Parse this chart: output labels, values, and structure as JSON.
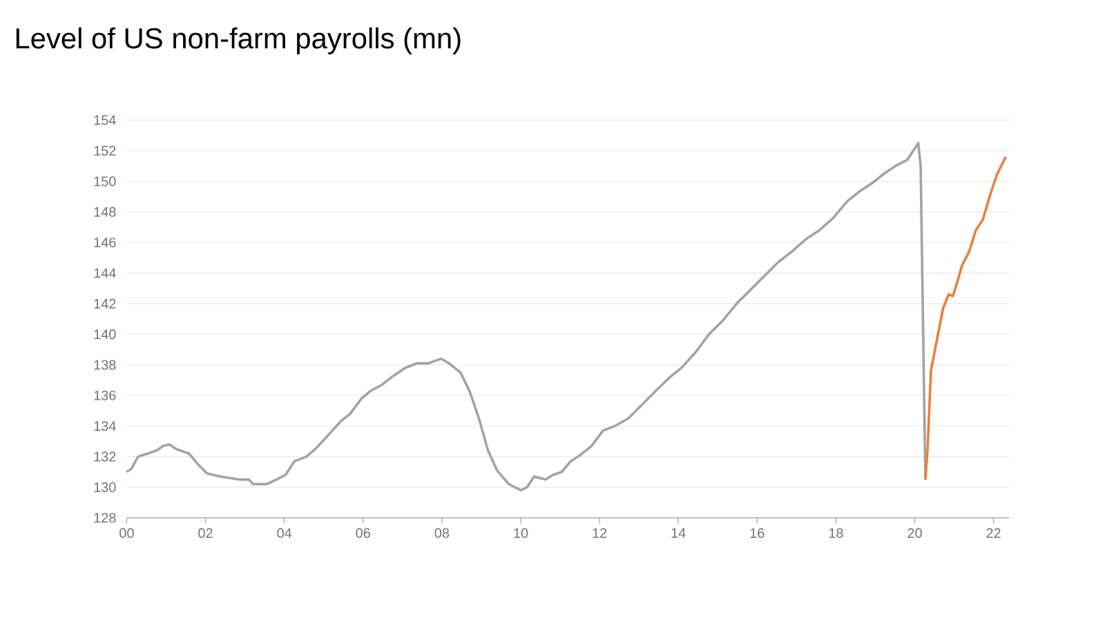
{
  "chart_data": {
    "type": "line",
    "title": "Level of US non-farm payrolls (mn)",
    "xlim": [
      2000,
      2022.4
    ],
    "ylim": [
      128,
      154
    ],
    "xticks": [
      {
        "value": 2000,
        "label": "00"
      },
      {
        "value": 2002,
        "label": "02"
      },
      {
        "value": 2004,
        "label": "04"
      },
      {
        "value": 2006,
        "label": "06"
      },
      {
        "value": 2008,
        "label": "08"
      },
      {
        "value": 2010,
        "label": "10"
      },
      {
        "value": 2012,
        "label": "12"
      },
      {
        "value": 2014,
        "label": "14"
      },
      {
        "value": 2016,
        "label": "16"
      },
      {
        "value": 2018,
        "label": "18"
      },
      {
        "value": 2020,
        "label": "20"
      },
      {
        "value": 2022,
        "label": "22"
      }
    ],
    "yticks": [
      128,
      130,
      132,
      134,
      136,
      138,
      140,
      142,
      144,
      146,
      148,
      150,
      152,
      154
    ],
    "grid": "y",
    "marker": "none",
    "line_style": "solid",
    "series": [
      {
        "color": "#a3a3a3",
        "x": [
          2000.0,
          2000.12,
          2000.29,
          2000.53,
          2000.76,
          2000.93,
          2001.09,
          2001.25,
          2001.58,
          2001.81,
          2002.04,
          2002.39,
          2002.86,
          2003.1,
          2003.21,
          2003.56,
          2003.8,
          2004.03,
          2004.26,
          2004.56,
          2004.79,
          2005.08,
          2005.43,
          2005.67,
          2005.96,
          2006.19,
          2006.48,
          2006.78,
          2007.07,
          2007.36,
          2007.65,
          2007.98,
          2008.18,
          2008.47,
          2008.7,
          2008.94,
          2009.17,
          2009.4,
          2009.7,
          2010.01,
          2010.16,
          2010.34,
          2010.63,
          2010.81,
          2011.04,
          2011.27,
          2011.51,
          2011.8,
          2012.09,
          2012.39,
          2012.73,
          2013.08,
          2013.43,
          2013.79,
          2014.08,
          2014.43,
          2014.78,
          2015.13,
          2015.48,
          2015.83,
          2016.18,
          2016.53,
          2016.88,
          2017.23,
          2017.58,
          2017.93,
          2018.29,
          2018.58,
          2018.93,
          2019.22,
          2019.51,
          2019.81,
          2020.09,
          2020.15,
          2020.27
        ],
        "values": [
          131.0,
          131.2,
          132.0,
          132.2,
          132.4,
          132.7,
          132.8,
          132.5,
          132.2,
          131.5,
          130.9,
          130.7,
          130.5,
          130.5,
          130.2,
          130.2,
          130.5,
          130.8,
          131.7,
          132.0,
          132.5,
          133.3,
          134.3,
          134.8,
          135.8,
          136.3,
          136.7,
          137.3,
          137.8,
          138.1,
          138.1,
          138.4,
          138.1,
          137.5,
          136.3,
          134.5,
          132.4,
          131.1,
          130.2,
          129.8,
          130.0,
          130.7,
          130.5,
          130.8,
          131.0,
          131.7,
          132.1,
          132.7,
          133.7,
          134.0,
          134.5,
          135.4,
          136.3,
          137.2,
          137.8,
          138.8,
          140.0,
          140.9,
          142.0,
          142.9,
          143.8,
          144.7,
          145.4,
          146.2,
          146.8,
          147.6,
          148.7,
          149.3,
          149.9,
          150.5,
          151.0,
          151.4,
          152.5,
          151.0,
          130.5
        ]
      },
      {
        "color": "#e8803a",
        "x": [
          2020.27,
          2020.33,
          2020.41,
          2020.56,
          2020.72,
          2020.86,
          2020.97,
          2021.09,
          2021.2,
          2021.38,
          2021.55,
          2021.73,
          2021.9,
          2022.08,
          2022.31
        ],
        "values": [
          130.5,
          132.7,
          137.6,
          139.6,
          141.7,
          142.6,
          142.5,
          143.5,
          144.5,
          145.4,
          146.8,
          147.5,
          149.0,
          150.4,
          151.6
        ]
      }
    ]
  }
}
